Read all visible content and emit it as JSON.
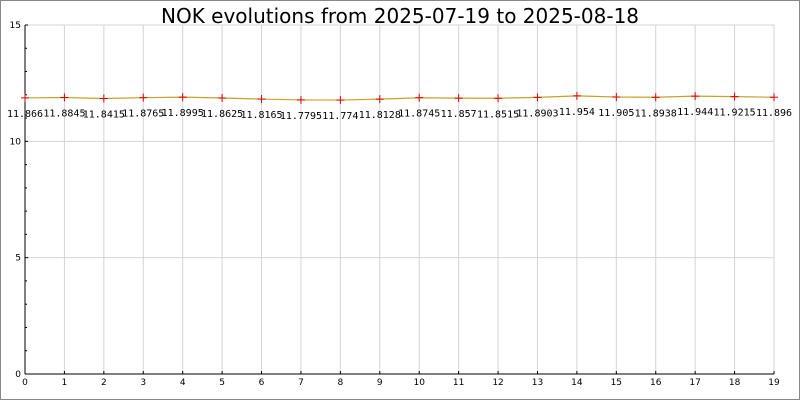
{
  "chart_data": {
    "type": "line",
    "title": "NOK evolutions from 2025-07-19 to 2025-08-18",
    "xlabel": "",
    "ylabel": "",
    "xlim": [
      0,
      19
    ],
    "ylim": [
      0,
      15
    ],
    "x_ticks": [
      0,
      1,
      2,
      3,
      4,
      5,
      6,
      7,
      8,
      9,
      10,
      11,
      12,
      13,
      14,
      15,
      16,
      17,
      18,
      19
    ],
    "y_ticks": [
      0,
      5,
      10,
      15
    ],
    "grid": true,
    "legend": "none",
    "series": [
      {
        "x": [
          0,
          1,
          2,
          3,
          4,
          5,
          6,
          7,
          8,
          9,
          10,
          11,
          12,
          13,
          14,
          15,
          16,
          17,
          18,
          19
        ],
        "values": [
          11.866,
          11.8845,
          11.8415,
          11.8765,
          11.8995,
          11.8625,
          11.8165,
          11.7795,
          11.774,
          11.8128,
          11.8745,
          11.857,
          11.8515,
          11.8903,
          11.954,
          11.905,
          11.8938,
          11.944,
          11.9215,
          11.896
        ],
        "labels": [
          "11.866",
          "11.8845",
          "11.8415",
          "11.8765",
          "11.8995",
          "11.8625",
          "11.8165",
          "11.7795",
          "11.774",
          "11.8128",
          "11.8745",
          "11.857",
          "11.8515",
          "11.8903",
          "11.954",
          "11.905",
          "11.8938",
          "11.944",
          "11.9215",
          "11.896"
        ],
        "line_color": "#c9a227",
        "marker_color": "#dd0000",
        "marker": "plus"
      }
    ],
    "colors": {
      "background": "#ffffff",
      "grid": "#d4d4d4",
      "axis": "#000000"
    }
  }
}
